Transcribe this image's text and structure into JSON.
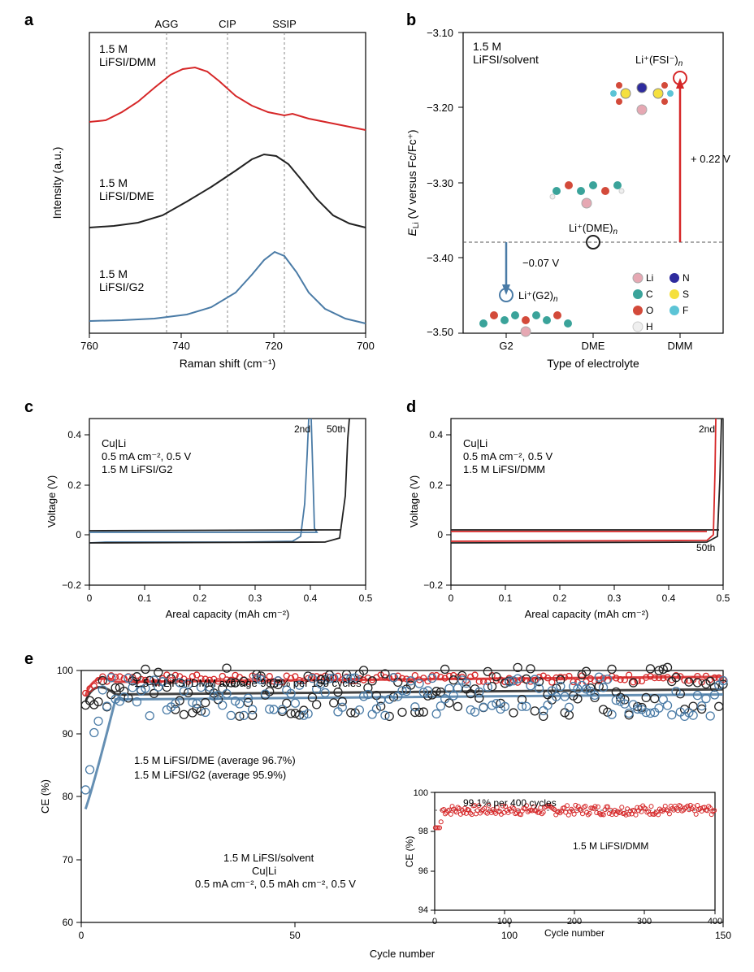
{
  "colors": {
    "red": "#d62728",
    "black": "#222222",
    "blue": "#4a7ba6",
    "white": "#ffffff",
    "grid": "#999999",
    "li": "#e6a8b3",
    "n": "#2e2b9e",
    "c": "#3aa39a",
    "s": "#f5e03e",
    "o": "#d34a3a",
    "f": "#5cc4d6",
    "h": "#efefef"
  },
  "panels": {
    "a": {
      "label": "a",
      "xlabel": "Raman shift (cm⁻¹)",
      "ylabel": "Intensity (a.u.)",
      "xticks": [
        760,
        740,
        720,
        700
      ],
      "vlines": [
        {
          "x": 744,
          "label": "AGG"
        },
        {
          "x": 730,
          "label": "CIP"
        },
        {
          "x": 717,
          "label": "SSIP"
        }
      ],
      "series": [
        {
          "name": "1.5 M\nLiFSI/DMM",
          "color": "#d62728"
        },
        {
          "name": "1.5 M\nLiFSI/DME",
          "color": "#222222"
        },
        {
          "name": "1.5 M\nLiFSI/G2",
          "color": "#4a7ba6"
        }
      ]
    },
    "b": {
      "label": "b",
      "xlabel": "Type of electrolyte",
      "ylabel": "E_Li (V versus Fc/Fc⁺)",
      "yticks": [
        -3.1,
        -3.2,
        -3.3,
        -3.4,
        -3.5
      ],
      "xcats": [
        "G2",
        "DME",
        "DMM"
      ],
      "title": "1.5 M\nLiFSI/solvent",
      "points": [
        {
          "x": "G2",
          "y": -3.45,
          "label": "Li⁺(G2)ₙ",
          "color": "#4a7ba6"
        },
        {
          "x": "DME",
          "y": -3.38,
          "label": "Li⁺(DME)ₙ",
          "color": "#222222"
        },
        {
          "x": "DMM",
          "y": -3.16,
          "label": "Li⁺(FSI⁻)ₙ",
          "color": "#d62728"
        }
      ],
      "arrows": [
        {
          "text": "−0.07 V",
          "color": "#4a7ba6"
        },
        {
          "text": "+ 0.22 V",
          "color": "#d62728"
        }
      ],
      "legend": [
        {
          "label": "Li",
          "color": "#e6a8b3"
        },
        {
          "label": "N",
          "color": "#2e2b9e"
        },
        {
          "label": "C",
          "color": "#3aa39a"
        },
        {
          "label": "S",
          "color": "#f5e03e"
        },
        {
          "label": "O",
          "color": "#d34a3a"
        },
        {
          "label": "F",
          "color": "#5cc4d6"
        },
        {
          "label": "H",
          "color": "#efefef"
        }
      ]
    },
    "c": {
      "label": "c",
      "xlabel": "Areal capacity (mAh cm⁻²)",
      "ylabel": "Voltage (V)",
      "xticks": [
        0,
        0.1,
        0.2,
        0.3,
        0.4,
        0.5
      ],
      "yticks": [
        -0.2,
        0,
        0.2,
        0.4
      ],
      "annot": [
        "Cu|Li",
        "0.5 mA cm⁻², 0.5 V",
        "1.5 M LiFSI/G2"
      ],
      "traces": [
        "2nd",
        "50th"
      ]
    },
    "d": {
      "label": "d",
      "xlabel": "Areal capacity (mAh cm⁻²)",
      "ylabel": "Voltage (V)",
      "xticks": [
        0,
        0.1,
        0.2,
        0.3,
        0.4,
        0.5
      ],
      "yticks": [
        -0.2,
        0,
        0.2,
        0.4
      ],
      "annot": [
        "Cu|Li",
        "0.5 mA cm⁻², 0.5 V",
        "1.5 M LiFSI/DMM"
      ],
      "traces": [
        "2nd",
        "50th"
      ]
    },
    "e": {
      "label": "e",
      "xlabel": "Cycle number",
      "ylabel": "CE (%)",
      "xticks": [
        0,
        50,
        100,
        150
      ],
      "yticks": [
        60,
        70,
        80,
        90,
        100
      ],
      "series": [
        {
          "name": "1.5 M LiFSI/DMM average 98.7% per 150 cycles",
          "color": "#d62728",
          "avg": 98.7
        },
        {
          "name": "1.5 M LiFSI/DME (average 96.7%)",
          "color": "#222222",
          "avg": 96.7
        },
        {
          "name": "1.5 M LiFSI/G2 (average 95.9%)",
          "color": "#4a7ba6",
          "avg": 95.9
        }
      ],
      "cond": [
        "1.5 M LiFSI/solvent",
        "Cu|Li",
        "0.5 mA cm⁻², 0.5 mAh cm⁻², 0.5 V"
      ],
      "inset": {
        "title": "99.1% per 400 cycles",
        "series_label": "1.5 M LiFSI/DMM",
        "xlabel": "Cycle number",
        "ylabel": "CE (%)",
        "xticks": [
          0,
          100,
          200,
          300,
          400
        ],
        "yticks": [
          94,
          96,
          98,
          100
        ]
      }
    }
  }
}
